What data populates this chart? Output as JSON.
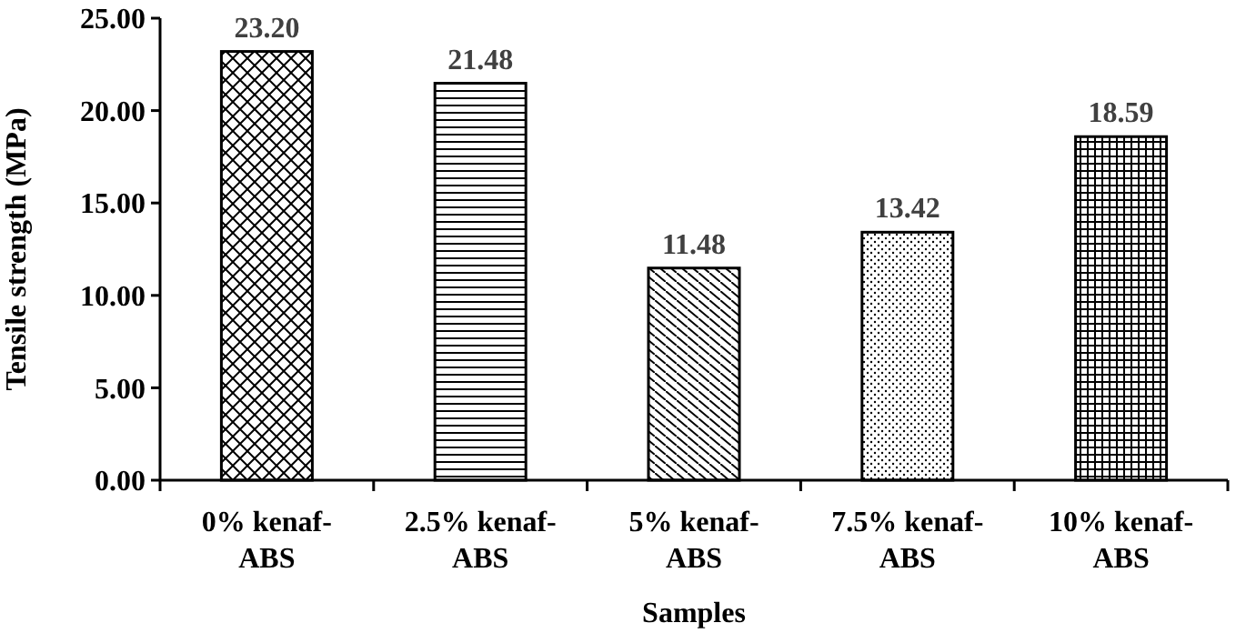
{
  "chart_data": {
    "type": "bar",
    "xlabel": "Samples",
    "ylabel": "Tensile strength (MPa)",
    "categories": [
      "0% kenaf-ABS",
      "2.5% kenaf-ABS",
      "5% kenaf-ABS",
      "7.5% kenaf-ABS",
      "10% kenaf-ABS"
    ],
    "values": [
      23.2,
      21.48,
      11.48,
      13.42,
      18.59
    ],
    "value_labels": [
      "23.20",
      "21.48",
      "11.48",
      "13.42",
      "18.59"
    ],
    "color": "#000000",
    "ylim": [
      0,
      25
    ],
    "yticks": [
      {
        "value": 0,
        "label": "0.00"
      },
      {
        "value": 5,
        "label": "5.00"
      },
      {
        "value": 10,
        "label": "10.00"
      },
      {
        "value": 15,
        "label": "15.00"
      },
      {
        "value": 20,
        "label": "20.00"
      },
      {
        "value": 25,
        "label": "25.00"
      }
    ],
    "grid": false
  }
}
